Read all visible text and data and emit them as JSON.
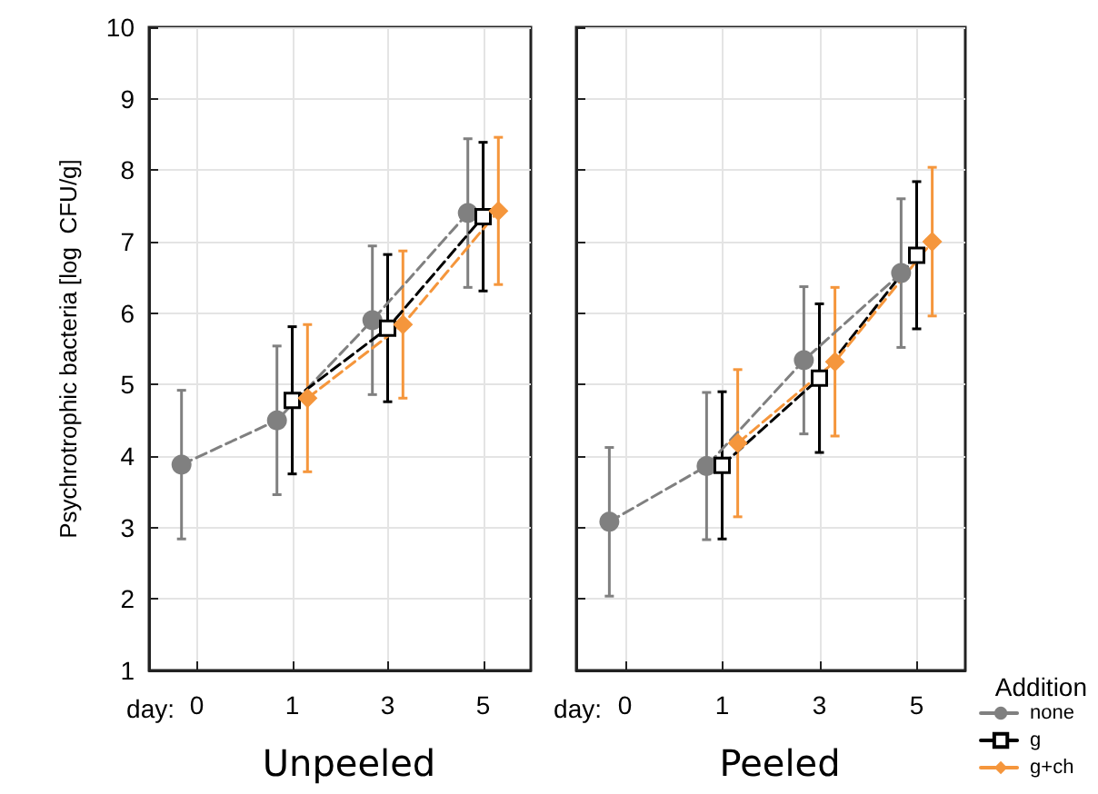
{
  "chart_data": [
    {
      "type": "line",
      "title": "Unpeeled",
      "xlabel": "day:",
      "ylabel": "Psychrotrophic bacteria [log  CFU/g]",
      "categories": [
        "0",
        "1",
        "3",
        "5"
      ],
      "ylim": [
        1,
        10
      ],
      "yticks": [
        1,
        2,
        3,
        4,
        5,
        6,
        7,
        8,
        9,
        10
      ],
      "grid": true,
      "legend": false,
      "line_style": "dashed",
      "series": [
        {
          "color": "#808080",
          "marker": "circle",
          "values": [
            3.88,
            4.5,
            5.9,
            7.4
          ],
          "errors": [
            1.04,
            1.04,
            1.04,
            1.04
          ]
        },
        {
          "color": "#000000",
          "marker": "square",
          "values": [
            null,
            4.78,
            5.79,
            7.35
          ],
          "errors": [
            null,
            1.03,
            1.03,
            1.04
          ]
        },
        {
          "color": "#f5963c",
          "marker": "diamond",
          "values": [
            null,
            4.81,
            5.84,
            7.43
          ],
          "errors": [
            null,
            1.03,
            1.03,
            1.03
          ]
        }
      ]
    },
    {
      "type": "line",
      "title": "Peeled",
      "xlabel": "day:",
      "legend_title": "Addition",
      "categories": [
        "0",
        "1",
        "3",
        "5"
      ],
      "ylim": [
        1,
        10
      ],
      "yticks": [
        1,
        2,
        3,
        4,
        5,
        6,
        7,
        8,
        9,
        10
      ],
      "tick_labels": "x",
      "grid": true,
      "legend": "bottom right",
      "line_style": "dashed",
      "series": [
        {
          "name": "none",
          "color": "#808080",
          "marker": "circle",
          "values": [
            3.08,
            3.86,
            5.34,
            6.56
          ],
          "errors": [
            1.04,
            1.03,
            1.03,
            1.04
          ]
        },
        {
          "name": "g",
          "color": "#000000",
          "marker": "square",
          "values": [
            null,
            3.87,
            5.09,
            6.81
          ],
          "errors": [
            null,
            1.03,
            1.04,
            1.03
          ]
        },
        {
          "name": "g+ch",
          "color": "#f5963c",
          "marker": "diamond",
          "values": [
            null,
            4.18,
            5.32,
            7.0
          ],
          "errors": [
            null,
            1.03,
            1.04,
            1.04
          ]
        }
      ]
    }
  ]
}
